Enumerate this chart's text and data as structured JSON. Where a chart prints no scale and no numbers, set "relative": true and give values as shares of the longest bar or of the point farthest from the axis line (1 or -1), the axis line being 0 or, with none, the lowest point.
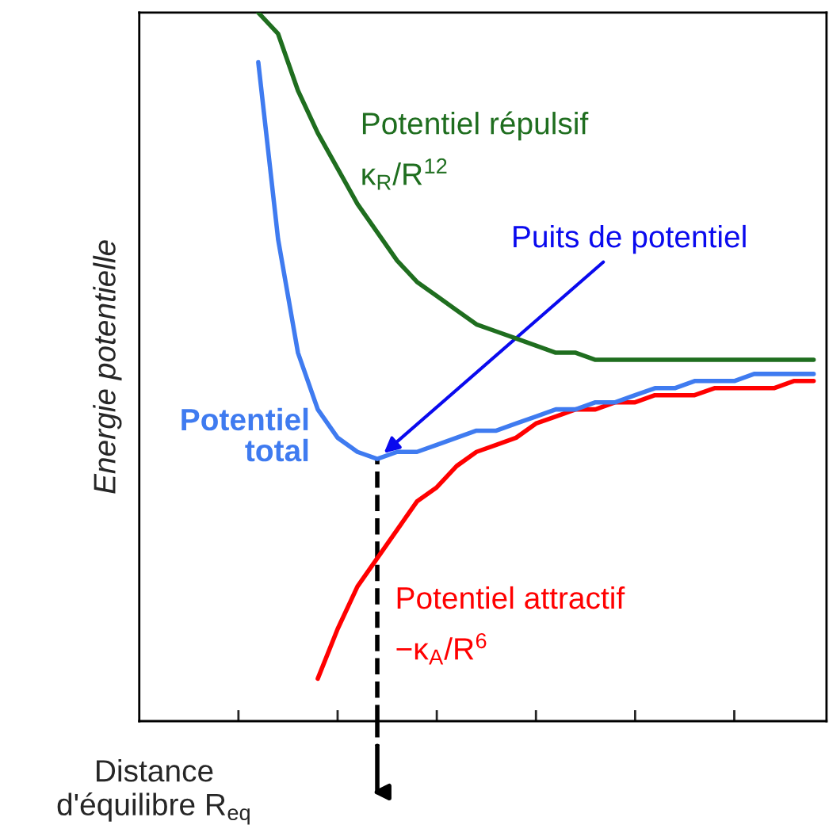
{
  "chart_data": {
    "type": "line",
    "relative": true,
    "ylabel": "Energie potentielle",
    "categories": [
      null,
      null,
      null,
      null,
      null,
      null,
      null,
      null,
      null,
      null,
      null,
      null,
      null,
      null,
      null,
      null,
      null,
      null,
      null,
      null,
      null,
      null,
      null,
      null,
      null,
      null,
      null,
      null,
      null,
      null,
      null,
      null,
      null,
      null,
      null
    ],
    "legend": false,
    "grid": false,
    "line_style": "solid",
    "marker": "none",
    "series": [
      {
        "name": "Potentiel\ntotal",
        "color": "#3f7bf0",
        "values": [
          null,
          null,
          null,
          null,
          null,
          null,
          0.93,
          0.68,
          0.52,
          0.44,
          0.4,
          0.38,
          0.37,
          0.38,
          0.38,
          0.39,
          0.4,
          0.41,
          0.41,
          0.42,
          0.43,
          0.44,
          0.44,
          0.45,
          0.45,
          0.46,
          0.47,
          0.47,
          0.48,
          0.48,
          0.48,
          0.49,
          0.49,
          0.49,
          0.49
        ]
      },
      {
        "name": "Potentiel répulsif",
        "color": "#1f6e1f",
        "values": [
          null,
          null,
          null,
          null,
          null,
          null,
          1,
          0.97,
          0.89,
          0.83,
          0.78,
          0.73,
          0.69,
          0.65,
          0.62,
          0.6,
          0.58,
          0.56,
          0.55,
          0.54,
          0.53,
          0.52,
          0.52,
          0.51,
          0.51,
          0.51,
          0.51,
          0.51,
          0.51,
          0.51,
          0.51,
          0.51,
          0.51,
          0.51,
          0.51
        ]
      },
      {
        "name": "Potentiel attractif",
        "color": "#ff0000",
        "values": [
          null,
          null,
          null,
          null,
          null,
          null,
          null,
          null,
          null,
          0.06,
          0.13,
          0.19,
          0.23,
          0.27,
          0.31,
          0.33,
          0.36,
          0.38,
          0.39,
          0.4,
          0.42,
          0.43,
          0.44,
          0.44,
          0.45,
          0.45,
          0.46,
          0.46,
          0.46,
          0.47,
          0.47,
          0.47,
          0.47,
          0.48,
          0.48
        ]
      }
    ],
    "annotations": [
      "Puits de potentiel",
      "κ$_{R}$/R$^{12}$",
      "−κ$_{A}$/R$^{6}$",
      "Distance\nd'équilibre R$_{eq}$"
    ]
  }
}
